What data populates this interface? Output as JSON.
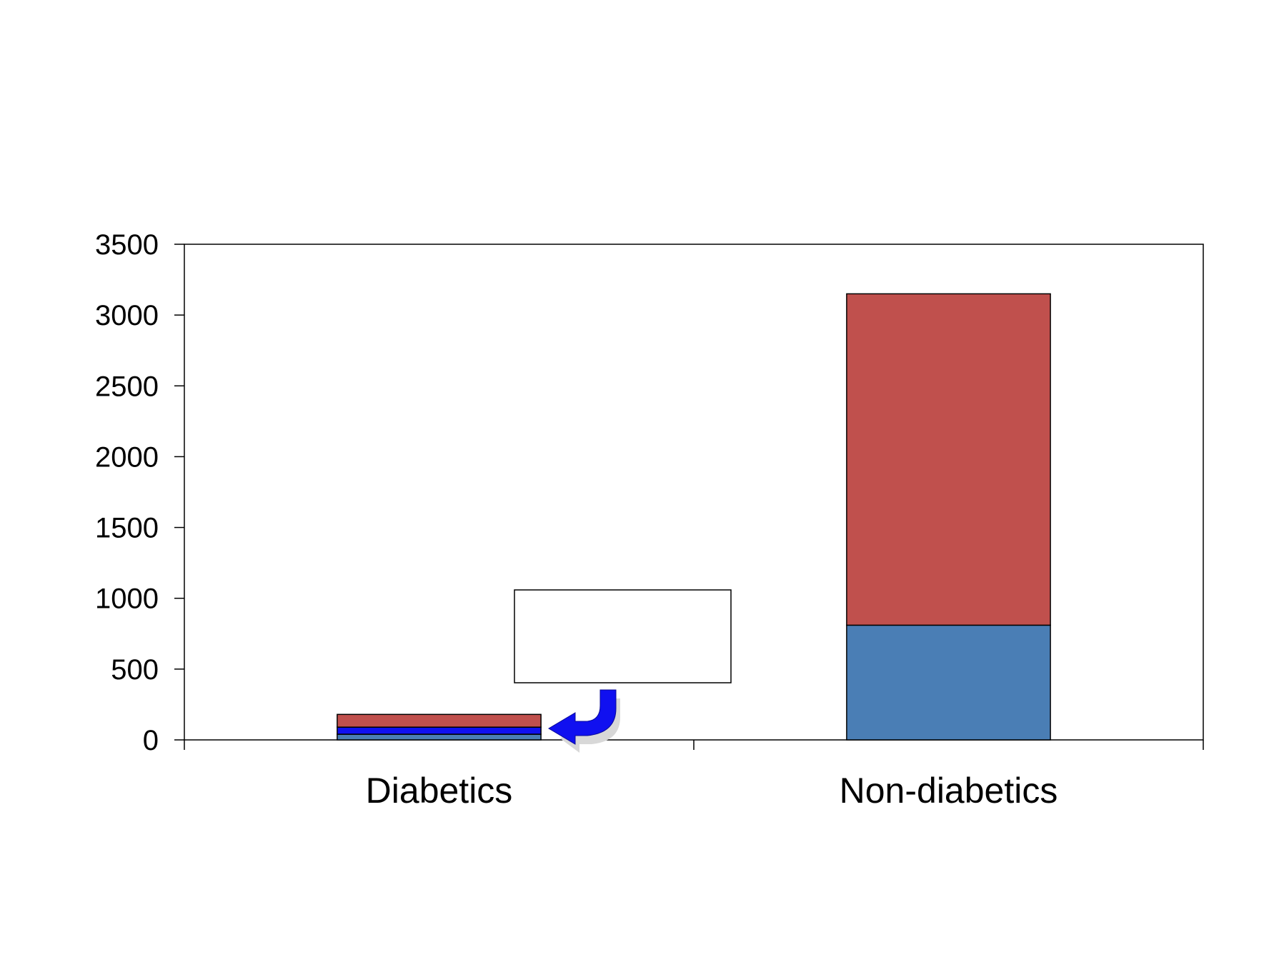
{
  "chart_data": {
    "type": "bar",
    "stacked": true,
    "title": "",
    "xlabel": "",
    "ylabel": "",
    "categories": [
      "Diabetics",
      "Non-diabetics"
    ],
    "series": [
      {
        "color": "#4A7EB5",
        "values": [
          40,
          810
        ]
      },
      {
        "color": "#1010F0",
        "values": [
          50,
          0
        ]
      },
      {
        "color": "#C0504D",
        "values": [
          90,
          2340
        ]
      }
    ],
    "ylim": [
      0,
      3500
    ],
    "yticks": [
      0,
      500,
      1000,
      1500,
      2000,
      2500,
      3000,
      3500
    ],
    "grid": false,
    "legend": "none",
    "annotations": [
      {
        "kind": "empty-text-box",
        "near": "Diabetics"
      },
      {
        "kind": "curved-arrow",
        "icon": "curved-arrow-icon",
        "color": "#1010F0",
        "points_to": "Diabetics"
      }
    ]
  }
}
